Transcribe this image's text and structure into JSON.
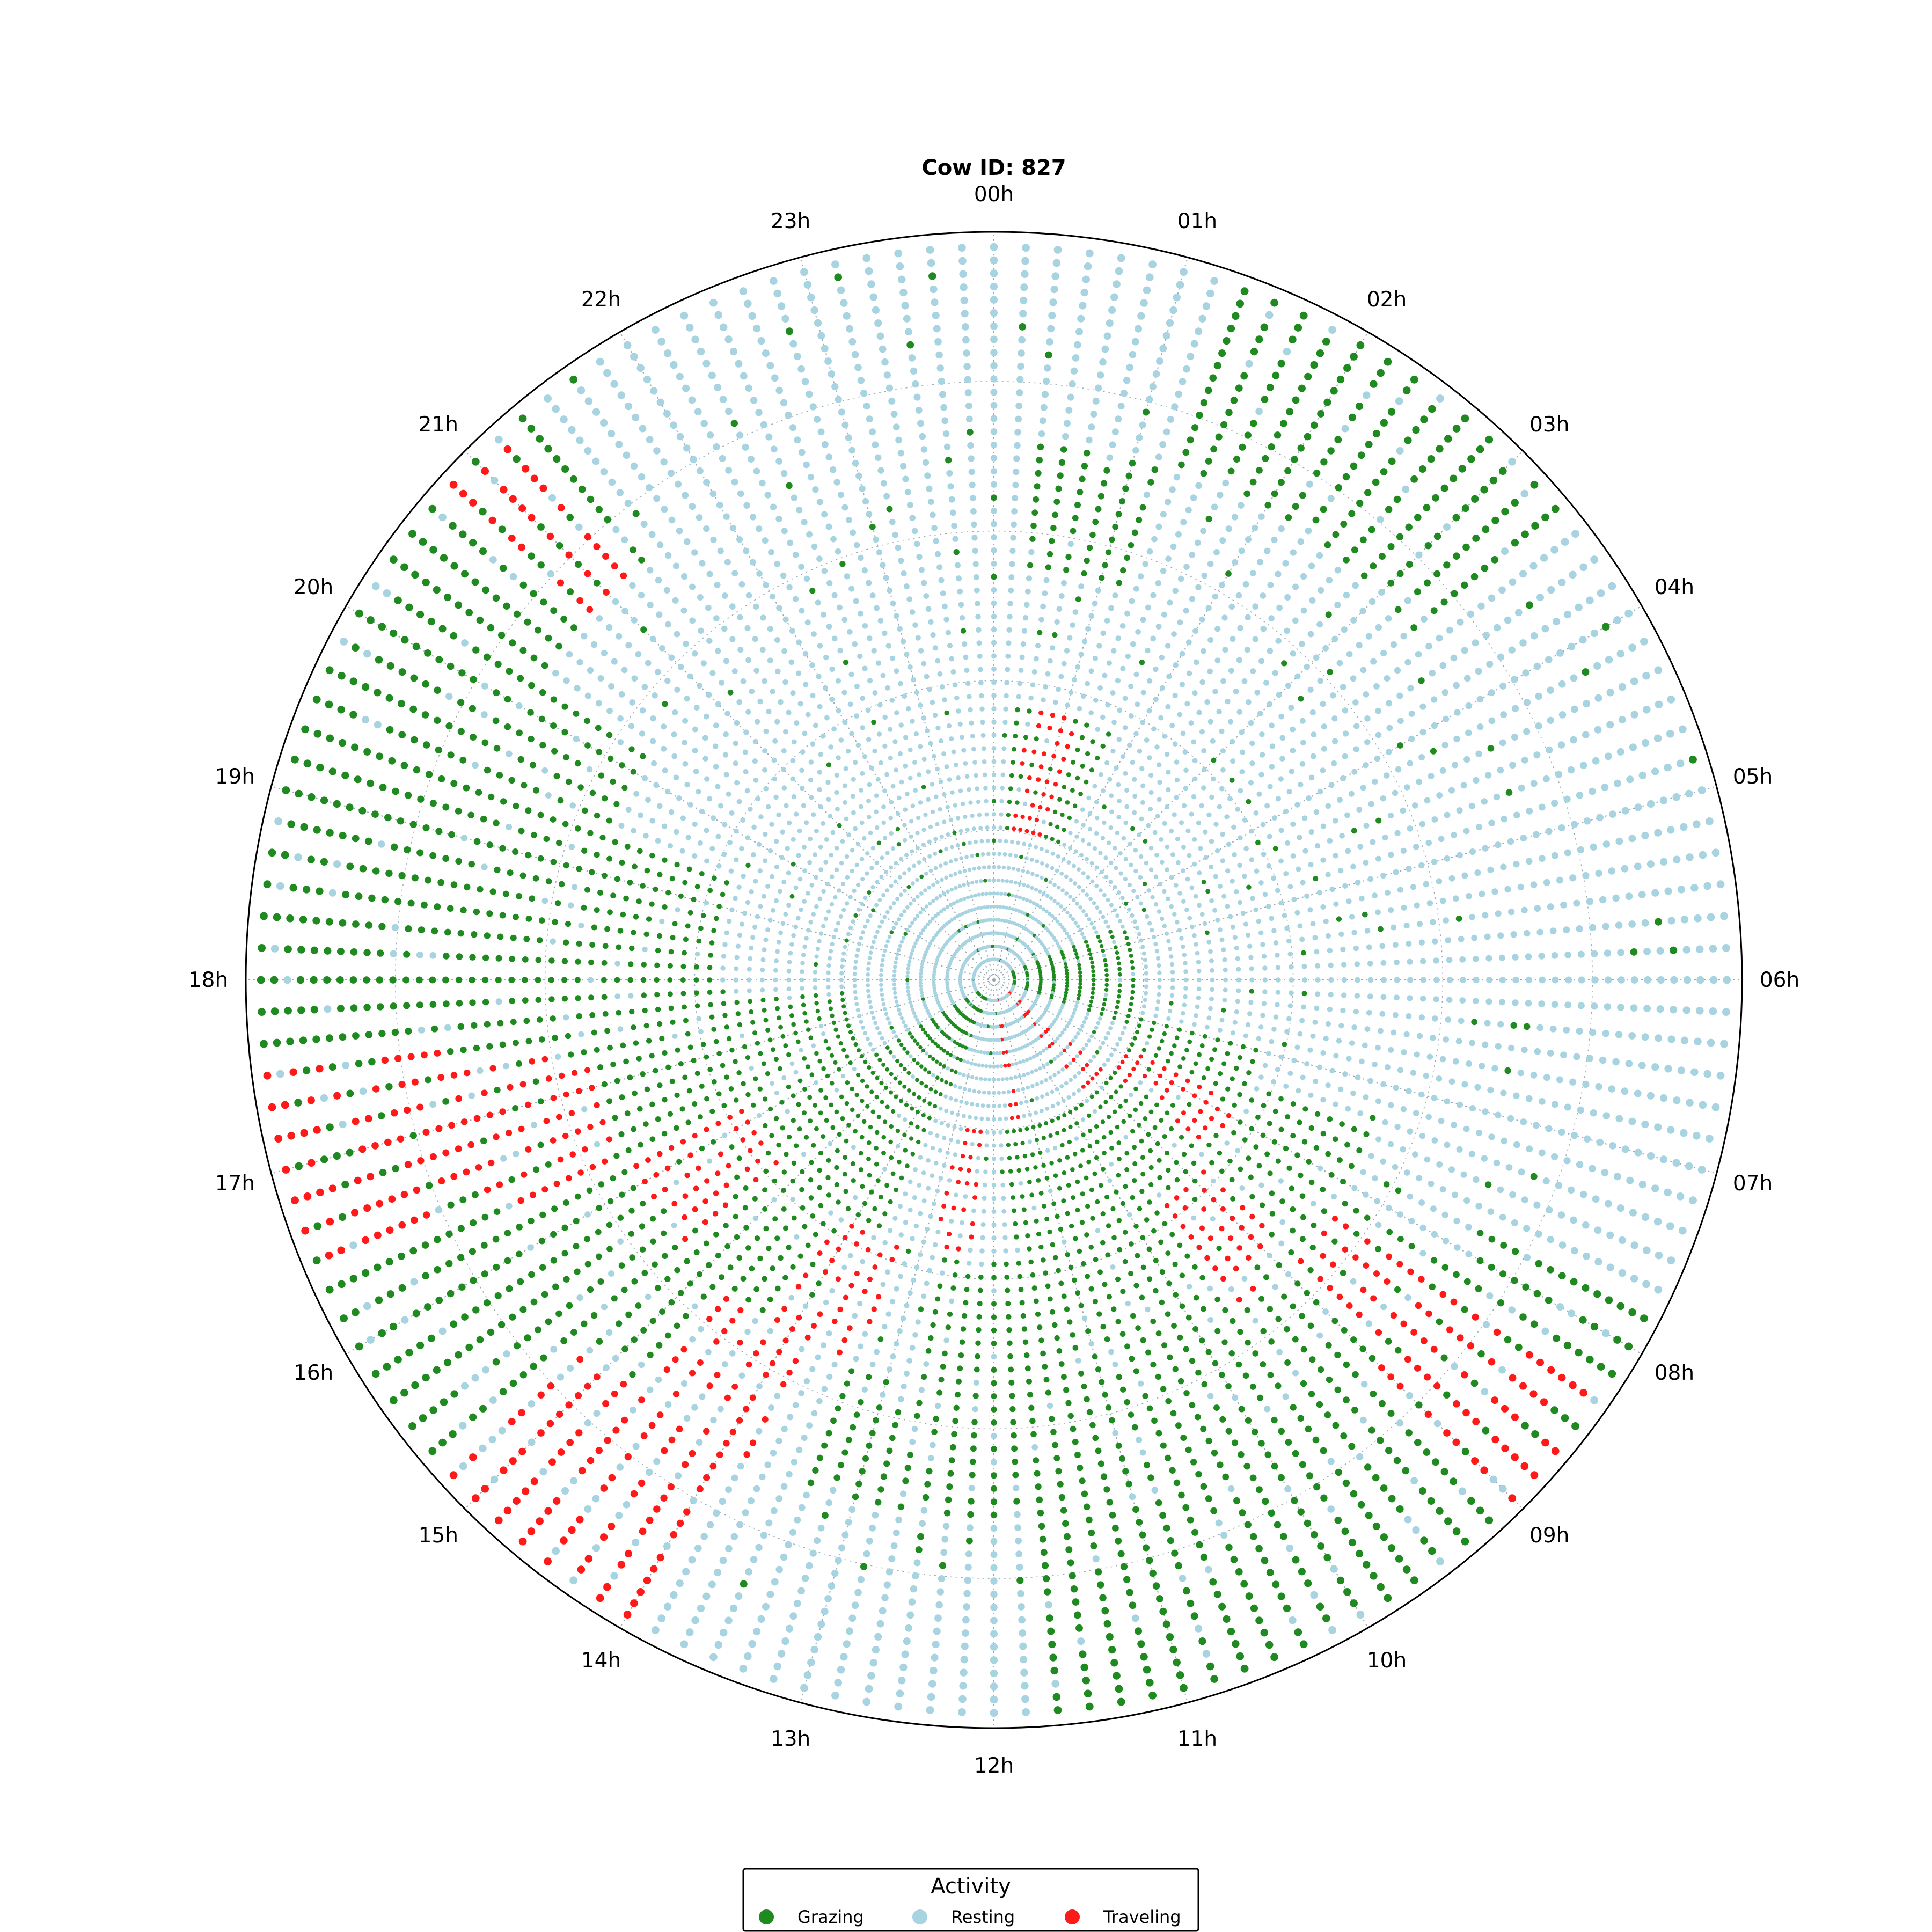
{
  "chart_data": {
    "type": "scatter",
    "subtype": "polar-dot-timeline",
    "title": "Cow ID: 827",
    "angular_axis": {
      "direction": "clockwise",
      "zero_location": "top",
      "tick_labels": [
        "00h",
        "01h",
        "02h",
        "03h",
        "04h",
        "05h",
        "06h",
        "07h",
        "08h",
        "09h",
        "10h",
        "11h",
        "12h",
        "13h",
        "14h",
        "15h",
        "16h",
        "17h",
        "18h",
        "19h",
        "20h",
        "21h",
        "22h",
        "23h"
      ]
    },
    "radial_axis": {
      "rings": 55,
      "samples_per_ring_per_hour": 6,
      "tick_labels_shown": false,
      "grid": "dotted"
    },
    "categories": [
      "Grazing",
      "Resting",
      "Traveling"
    ],
    "colors": {
      "Grazing": "#1f8a1f",
      "Resting": "#a8d3e0",
      "Traveling": "#ff1a1a",
      "grid": "#9aa9b3",
      "outline": "#000000"
    },
    "activity_windows_by_ring_group": [
      {
        "rings": "1-10",
        "Grazing": [
          [
            4.5,
            7.2
          ],
          [
            13.5,
            16.0
          ]
        ],
        "Traveling": [
          [
            8.6,
            9.4
          ],
          [
            11.2,
            11.6
          ]
        ]
      },
      {
        "rings": "11-20",
        "Grazing": [
          [
            0.3,
            1.7
          ],
          [
            7.0,
            11.8
          ],
          [
            13.6,
            17.7
          ]
        ],
        "Traveling": [
          [
            7.7,
            8.6
          ],
          [
            12.2,
            13.0
          ],
          [
            0.5,
            1.2
          ]
        ]
      },
      {
        "rings": "21-30",
        "Grazing": [
          [
            7.4,
            12.7
          ],
          [
            14.0,
            19.4
          ]
        ],
        "Traveling": [
          [
            8.8,
            9.6
          ],
          [
            13.2,
            14.2
          ],
          [
            15.2,
            16.2
          ]
        ]
      },
      {
        "rings": "31-40",
        "Grazing": [
          [
            0.2,
            1.3
          ],
          [
            8.1,
            13.4
          ],
          [
            14.7,
            20.2
          ]
        ],
        "Traveling": [
          [
            8.2,
            9.0
          ],
          [
            13.8,
            14.8
          ],
          [
            16.3,
            17.4
          ]
        ]
      },
      {
        "rings": "41-55",
        "Grazing": [
          [
            1.2,
            3.4
          ],
          [
            7.8,
            11.7
          ],
          [
            15.2,
            21.4
          ]
        ],
        "Traveling": [
          [
            8.3,
            9.1
          ],
          [
            14.0,
            15.3
          ],
          [
            16.5,
            17.6
          ],
          [
            20.8,
            21.2
          ]
        ]
      }
    ],
    "legend": {
      "title": "Activity",
      "placement": "bottom-center",
      "entries": [
        "Grazing",
        "Resting",
        "Traveling"
      ]
    }
  }
}
